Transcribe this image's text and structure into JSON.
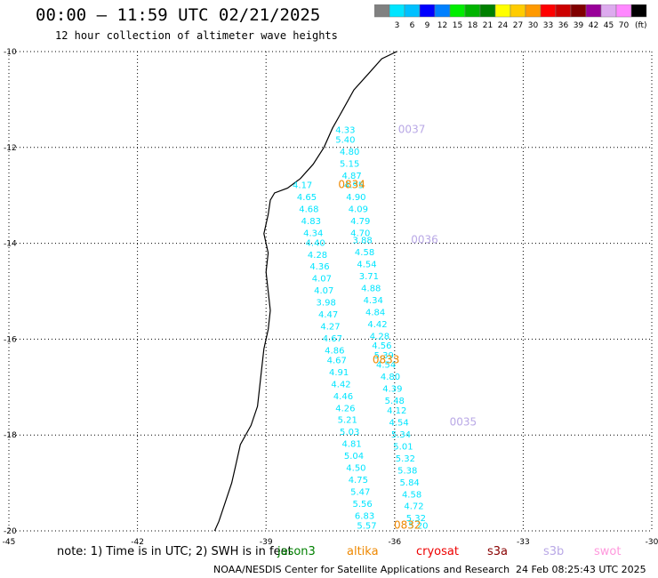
{
  "header": {
    "title": "00:00 – 11:59 UTC 02/21/2025",
    "subtitle": "12 hour collection of altimeter wave heights"
  },
  "legend": {
    "colors": [
      "#808080",
      "#00e5ff",
      "#00c0ff",
      "#0000ff",
      "#0080ff",
      "#00ee00",
      "#00b400",
      "#008000",
      "#ffff00",
      "#ffcc00",
      "#ff9900",
      "#ff0000",
      "#cc0000",
      "#800000",
      "#990099",
      "#ddaaee",
      "#ff88ff",
      "#000000"
    ],
    "labels": [
      "3",
      "6",
      "9",
      "12",
      "15",
      "18",
      "21",
      "24",
      "27",
      "30",
      "33",
      "36",
      "39",
      "42",
      "45",
      "70"
    ],
    "unit": "(ft)"
  },
  "map": {
    "lat_range": [
      -20,
      -10
    ],
    "lon_range": [
      -45,
      -30
    ],
    "lat_ticks": [
      "-10",
      "-12",
      "-14",
      "-16",
      "-18",
      "-20"
    ],
    "lon_ticks": [
      "-45",
      "-42",
      "-39",
      "-36",
      "-33",
      "-30"
    ],
    "coastline": [
      [
        -35.95,
        -10.0
      ],
      [
        -36.3,
        -10.15
      ],
      [
        -36.6,
        -10.45
      ],
      [
        -36.95,
        -10.8
      ],
      [
        -37.2,
        -11.2
      ],
      [
        -37.45,
        -11.6
      ],
      [
        -37.65,
        -12.0
      ],
      [
        -37.9,
        -12.35
      ],
      [
        -38.2,
        -12.65
      ],
      [
        -38.5,
        -12.85
      ],
      [
        -38.8,
        -12.95
      ],
      [
        -38.9,
        -13.1
      ],
      [
        -38.95,
        -13.4
      ],
      [
        -39.05,
        -13.8
      ],
      [
        -38.95,
        -14.2
      ],
      [
        -39.0,
        -14.6
      ],
      [
        -38.95,
        -15.0
      ],
      [
        -38.9,
        -15.4
      ],
      [
        -38.95,
        -15.8
      ],
      [
        -39.05,
        -16.2
      ],
      [
        -39.1,
        -16.6
      ],
      [
        -39.15,
        -17.0
      ],
      [
        -39.2,
        -17.4
      ],
      [
        -39.35,
        -17.8
      ],
      [
        -39.6,
        -18.2
      ],
      [
        -39.7,
        -18.6
      ],
      [
        -39.8,
        -19.0
      ],
      [
        -39.95,
        -19.4
      ],
      [
        -40.1,
        -19.8
      ],
      [
        -40.2,
        -20.0
      ]
    ],
    "tracks": [
      {
        "label": "0037",
        "color": "#b9a8e6",
        "label_pos": [
          -35.6,
          -11.7
        ]
      },
      {
        "label": "0834",
        "color": "#ee8800",
        "label_pos": [
          -37.0,
          -12.85
        ]
      },
      {
        "label": "0036",
        "color": "#b9a8e6",
        "label_pos": [
          -35.3,
          -14.0
        ]
      },
      {
        "label": "0833",
        "color": "#ee8800",
        "label_pos": [
          -36.2,
          -16.5
        ]
      },
      {
        "label": "0035",
        "color": "#b9a8e6",
        "label_pos": [
          -34.4,
          -17.8
        ]
      },
      {
        "label": "0832",
        "color": "#ee8800",
        "label_pos": [
          -35.7,
          -19.95
        ]
      }
    ],
    "observations": [
      {
        "lon": -37.15,
        "lat": -11.7,
        "value": "4.33"
      },
      {
        "lon": -37.15,
        "lat": -11.9,
        "value": "5.40"
      },
      {
        "lon": -37.05,
        "lat": -12.15,
        "value": "4.80"
      },
      {
        "lon": -37.05,
        "lat": -12.4,
        "value": "5.15"
      },
      {
        "lon": -37.0,
        "lat": -12.65,
        "value": "4.87"
      },
      {
        "lon": -36.95,
        "lat": -12.85,
        "value": "4.95"
      },
      {
        "lon": -36.9,
        "lat": -13.1,
        "value": "4.90"
      },
      {
        "lon": -36.85,
        "lat": -13.35,
        "value": "4.09"
      },
      {
        "lon": -36.8,
        "lat": -13.6,
        "value": "4.79"
      },
      {
        "lon": -36.8,
        "lat": -13.85,
        "value": "4.70"
      },
      {
        "lon": -36.75,
        "lat": -14.0,
        "value": "3.88"
      },
      {
        "lon": -36.7,
        "lat": -14.25,
        "value": "4.58"
      },
      {
        "lon": -36.65,
        "lat": -14.5,
        "value": "4.54"
      },
      {
        "lon": -36.6,
        "lat": -14.75,
        "value": "3.71"
      },
      {
        "lon": -36.55,
        "lat": -15.0,
        "value": "4.88"
      },
      {
        "lon": -36.5,
        "lat": -15.25,
        "value": "4.34"
      },
      {
        "lon": -36.45,
        "lat": -15.5,
        "value": "4.84"
      },
      {
        "lon": -36.4,
        "lat": -15.75,
        "value": "4.42"
      },
      {
        "lon": -36.35,
        "lat": -16.0,
        "value": "4.28"
      },
      {
        "lon": -36.3,
        "lat": -16.2,
        "value": "4.56"
      },
      {
        "lon": -36.25,
        "lat": -16.4,
        "value": "5.39"
      },
      {
        "lon": -36.2,
        "lat": -16.6,
        "value": "4.54"
      },
      {
        "lon": -36.1,
        "lat": -16.85,
        "value": "4.80"
      },
      {
        "lon": -36.05,
        "lat": -17.1,
        "value": "4.39"
      },
      {
        "lon": -36.0,
        "lat": -17.35,
        "value": "5.48"
      },
      {
        "lon": -35.95,
        "lat": -17.55,
        "value": "4.12"
      },
      {
        "lon": -35.9,
        "lat": -17.8,
        "value": "4.54"
      },
      {
        "lon": -35.85,
        "lat": -18.05,
        "value": "5.34"
      },
      {
        "lon": -35.8,
        "lat": -18.3,
        "value": "5.01"
      },
      {
        "lon": -35.75,
        "lat": -18.55,
        "value": "5.32"
      },
      {
        "lon": -35.7,
        "lat": -18.8,
        "value": "5.38"
      },
      {
        "lon": -35.65,
        "lat": -19.05,
        "value": "5.84"
      },
      {
        "lon": -35.6,
        "lat": -19.3,
        "value": "4.58"
      },
      {
        "lon": -35.55,
        "lat": -19.55,
        "value": "4.72"
      },
      {
        "lon": -35.5,
        "lat": -19.8,
        "value": "5.32"
      },
      {
        "lon": -35.45,
        "lat": -19.95,
        "value": "5.20"
      },
      {
        "lon": -38.15,
        "lat": -12.85,
        "value": "4.17"
      },
      {
        "lon": -38.05,
        "lat": -13.1,
        "value": "4.65"
      },
      {
        "lon": -38.0,
        "lat": -13.35,
        "value": "4.68"
      },
      {
        "lon": -37.95,
        "lat": -13.6,
        "value": "4.83"
      },
      {
        "lon": -37.9,
        "lat": -13.85,
        "value": "4.34"
      },
      {
        "lon": -37.85,
        "lat": -14.05,
        "value": "4.40"
      },
      {
        "lon": -37.8,
        "lat": -14.3,
        "value": "4.28"
      },
      {
        "lon": -37.75,
        "lat": -14.55,
        "value": "4.36"
      },
      {
        "lon": -37.7,
        "lat": -14.8,
        "value": "4.07"
      },
      {
        "lon": -37.65,
        "lat": -15.05,
        "value": "4.07"
      },
      {
        "lon": -37.6,
        "lat": -15.3,
        "value": "3.98"
      },
      {
        "lon": -37.55,
        "lat": -15.55,
        "value": "4.47"
      },
      {
        "lon": -37.5,
        "lat": -15.8,
        "value": "4.27"
      },
      {
        "lon": -37.45,
        "lat": -16.05,
        "value": "4.67"
      },
      {
        "lon": -37.4,
        "lat": -16.3,
        "value": "4.86"
      },
      {
        "lon": -37.35,
        "lat": -16.5,
        "value": "4.67"
      },
      {
        "lon": -37.3,
        "lat": -16.75,
        "value": "4.91"
      },
      {
        "lon": -37.25,
        "lat": -17.0,
        "value": "4.42"
      },
      {
        "lon": -37.2,
        "lat": -17.25,
        "value": "4.46"
      },
      {
        "lon": -37.15,
        "lat": -17.5,
        "value": "4.26"
      },
      {
        "lon": -37.1,
        "lat": -17.75,
        "value": "5.21"
      },
      {
        "lon": -37.05,
        "lat": -18.0,
        "value": "5.03"
      },
      {
        "lon": -37.0,
        "lat": -18.25,
        "value": "4.81"
      },
      {
        "lon": -36.95,
        "lat": -18.5,
        "value": "5.04"
      },
      {
        "lon": -36.9,
        "lat": -18.75,
        "value": "4.50"
      },
      {
        "lon": -36.85,
        "lat": -19.0,
        "value": "4.75"
      },
      {
        "lon": -36.8,
        "lat": -19.25,
        "value": "5.47"
      },
      {
        "lon": -36.75,
        "lat": -19.5,
        "value": "5.56"
      },
      {
        "lon": -36.7,
        "lat": -19.75,
        "value": "6.83"
      },
      {
        "lon": -36.65,
        "lat": -19.95,
        "value": "5.57"
      }
    ]
  },
  "note": "note: 1) Time is in UTC; 2) SWH is in feet",
  "missions": [
    {
      "name": "jason3",
      "color": "#008000"
    },
    {
      "name": "altika",
      "color": "#ee8800"
    },
    {
      "name": "cryosat",
      "color": "#ee0000"
    },
    {
      "name": "s3a",
      "color": "#880000"
    },
    {
      "name": "s3b",
      "color": "#b9a8e6"
    },
    {
      "name": "swot",
      "color": "#ff99dd"
    }
  ],
  "footer": {
    "credit": "NOAA/NESDIS Center for Satellite Applications and Research",
    "timestamp": "24 Feb 08:25:43 UTC 2025"
  }
}
